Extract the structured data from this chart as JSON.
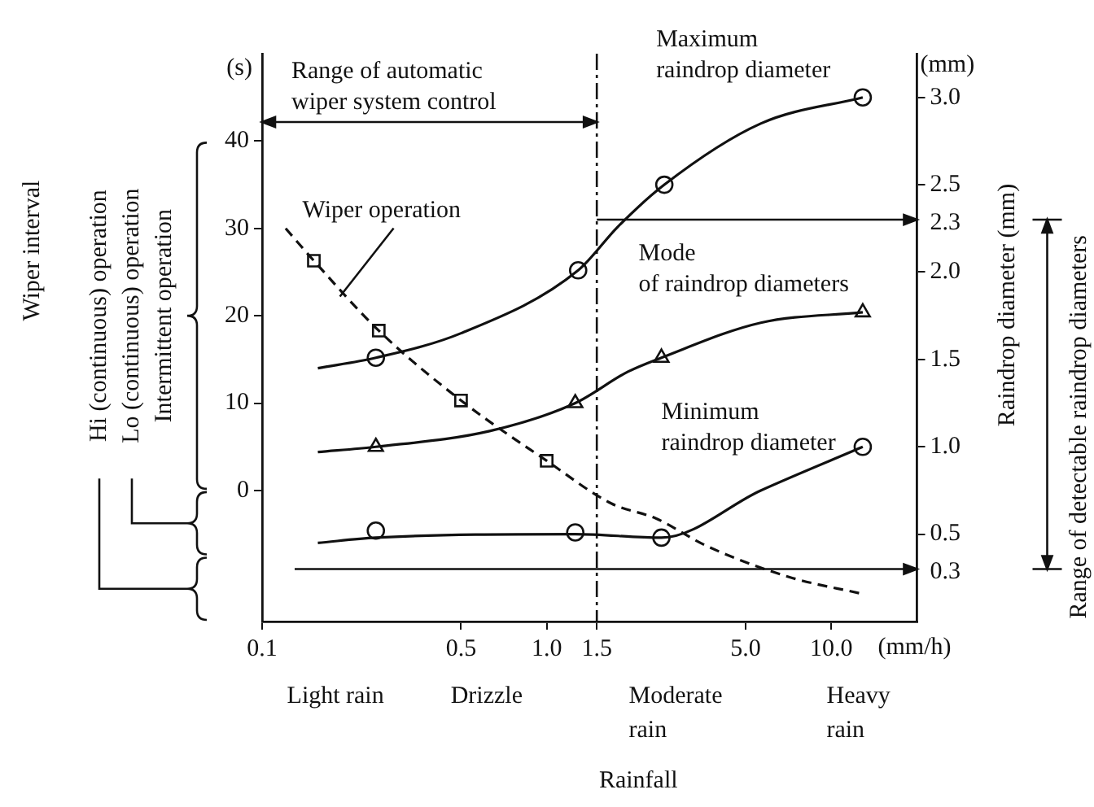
{
  "chart_data": {
    "type": "line",
    "log": "x",
    "grid": false,
    "legend": false,
    "xlabel": "Rainfall",
    "y2label": "Raindrop diameter (mm)",
    "xlim": [
      0.1,
      20
    ],
    "xticks": [
      0.1,
      0.5,
      {
        "value": 1,
        "label": "1.0"
      },
      1.5,
      {
        "value": 5,
        "label": "5.0"
      },
      {
        "value": 10,
        "label": "10.0"
      }
    ],
    "ylim": [
      -15,
      50
    ],
    "yticks": [
      0,
      10,
      20,
      30,
      40
    ],
    "y2lim": [
      0,
      3.25
    ],
    "y2ticks": [
      0.5,
      {
        "value": 1,
        "label": "1.0"
      },
      1.5,
      {
        "value": 2,
        "label": "2.0"
      },
      2.5,
      {
        "value": 3,
        "label": "3.0"
      }
    ],
    "series": [
      {
        "name": "Maximum raindrop diameter",
        "axis": "y2",
        "color": "#111111",
        "marker": "none",
        "line_style": "solid",
        "x": [
          0.157,
          0.251,
          0.5,
          1.29,
          1.78,
          2.59,
          5.65,
          12.9
        ],
        "values": [
          1.45,
          1.51,
          1.65,
          2.01,
          2.26,
          2.5,
          2.85,
          3.0
        ]
      },
      {
        "type": "scatter",
        "axis": "y2",
        "color": "#111111",
        "marker": "circle",
        "x": [
          0.251,
          1.29,
          2.59,
          12.9
        ],
        "values": [
          1.51,
          2.01,
          2.5,
          3.0
        ]
      },
      {
        "name": "Mode of raindrop diameters",
        "axis": "y2",
        "color": "#111111",
        "marker": "none",
        "line_style": "solid",
        "x": [
          0.157,
          0.251,
          0.63,
          1.26,
          1.93,
          2.53,
          5.65,
          12.9
        ],
        "values": [
          0.97,
          1.0,
          1.09,
          1.25,
          1.43,
          1.51,
          1.71,
          1.77
        ]
      },
      {
        "type": "scatter",
        "axis": "y2",
        "color": "#111111",
        "marker": "triangle",
        "x": [
          0.251,
          1.26,
          2.53,
          12.9
        ],
        "values": [
          1.0,
          1.25,
          1.51,
          1.77
        ]
      },
      {
        "name": "Minimum raindrop diameter",
        "axis": "y2",
        "color": "#111111",
        "marker": "none",
        "line_style": "solid",
        "x": [
          0.157,
          0.251,
          1.26,
          2.53,
          5.65,
          12.9
        ],
        "values": [
          0.45,
          0.48,
          0.5,
          0.48,
          0.75,
          1.0
        ]
      },
      {
        "type": "scatter",
        "axis": "y2",
        "color": "#111111",
        "marker": "circle",
        "x": [
          0.251,
          1.26,
          2.53,
          12.9
        ],
        "values": [
          0.52,
          0.51,
          0.48,
          1.0
        ]
      },
      {
        "name": "Wiper operation",
        "axis": "y",
        "color": "#111111",
        "marker": "none",
        "line_style": "dashed",
        "x": [
          0.121,
          0.152,
          0.257,
          0.5,
          1.0,
          1.69,
          2.42,
          3.62,
          7.1,
          12.7
        ],
        "values": [
          30,
          26.3,
          18.3,
          10.3,
          3.4,
          -1.5,
          -3.2,
          -6.3,
          -9.9,
          -11.8
        ]
      },
      {
        "type": "scatter",
        "axis": "y",
        "color": "#111111",
        "marker": "square",
        "x": [
          0.152,
          0.257,
          0.5,
          1.0
        ],
        "values": [
          26.3,
          18.3,
          10.3,
          3.4
        ]
      }
    ],
    "ref_lines": [
      {
        "axis": "x",
        "value": 1.5,
        "line_style": "dashed"
      },
      {
        "axis": "y2",
        "value": 2.3,
        "label": "2.3"
      },
      {
        "axis": "y2",
        "value": 0.3,
        "label": "0.3"
      }
    ],
    "annotations": [
      "(s)",
      "(mm)",
      "(mm/h)",
      "Range of automatic wiper system control",
      "Range of detectable raindrop diameters",
      "Intermittent operation",
      "Lo (continuous) operation",
      "Hi (continuous) operation",
      "Wiper interval",
      "Light rain",
      "Drizzle",
      "Moderate rain",
      "Heavy rain"
    ]
  }
}
